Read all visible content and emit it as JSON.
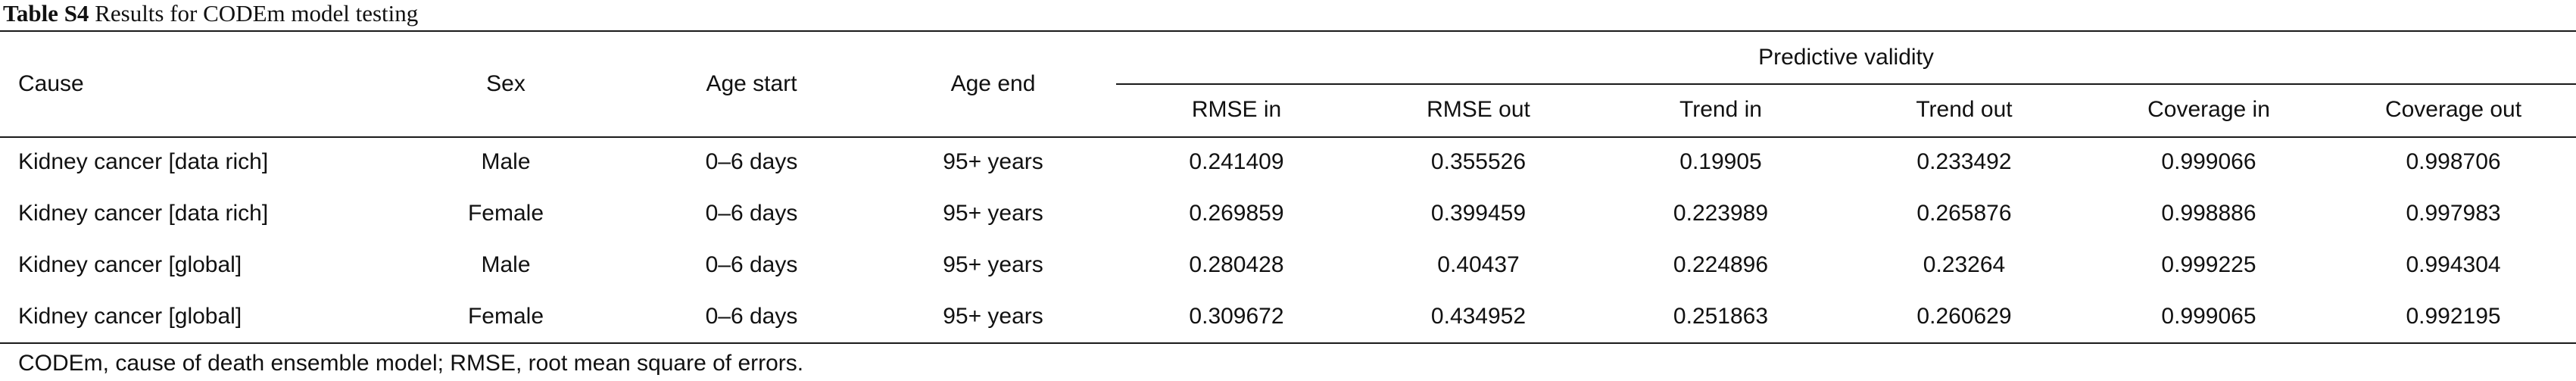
{
  "caption": {
    "label": "Table S4",
    "text": "Results for CODEm model testing"
  },
  "headers": {
    "cause": "Cause",
    "sex": "Sex",
    "age_start": "Age start",
    "age_end": "Age end",
    "group": "Predictive validity",
    "rmse_in": "RMSE in",
    "rmse_out": "RMSE out",
    "trend_in": "Trend in",
    "trend_out": "Trend out",
    "coverage_in": "Coverage in",
    "coverage_out": "Coverage out"
  },
  "rows": [
    {
      "cause": "Kidney cancer [data rich]",
      "sex": "Male",
      "age_start": "0–6 days",
      "age_end": "95+ years",
      "rmse_in": "0.241409",
      "rmse_out": "0.355526",
      "trend_in": "0.19905",
      "trend_out": "0.233492",
      "coverage_in": "0.999066",
      "coverage_out": "0.998706"
    },
    {
      "cause": "Kidney cancer [data rich]",
      "sex": "Female",
      "age_start": "0–6 days",
      "age_end": "95+ years",
      "rmse_in": "0.269859",
      "rmse_out": "0.399459",
      "trend_in": "0.223989",
      "trend_out": "0.265876",
      "coverage_in": "0.998886",
      "coverage_out": "0.997983"
    },
    {
      "cause": "Kidney cancer [global]",
      "sex": "Male",
      "age_start": "0–6 days",
      "age_end": "95+ years",
      "rmse_in": "0.280428",
      "rmse_out": "0.40437",
      "trend_in": "0.224896",
      "trend_out": "0.23264",
      "coverage_in": "0.999225",
      "coverage_out": "0.994304"
    },
    {
      "cause": "Kidney cancer [global]",
      "sex": "Female",
      "age_start": "0–6 days",
      "age_end": "95+ years",
      "rmse_in": "0.309672",
      "rmse_out": "0.434952",
      "trend_in": "0.251863",
      "trend_out": "0.260629",
      "coverage_in": "0.999065",
      "coverage_out": "0.992195"
    }
  ],
  "footnote": "CODEm, cause of death ensemble model; RMSE, root mean square of errors."
}
